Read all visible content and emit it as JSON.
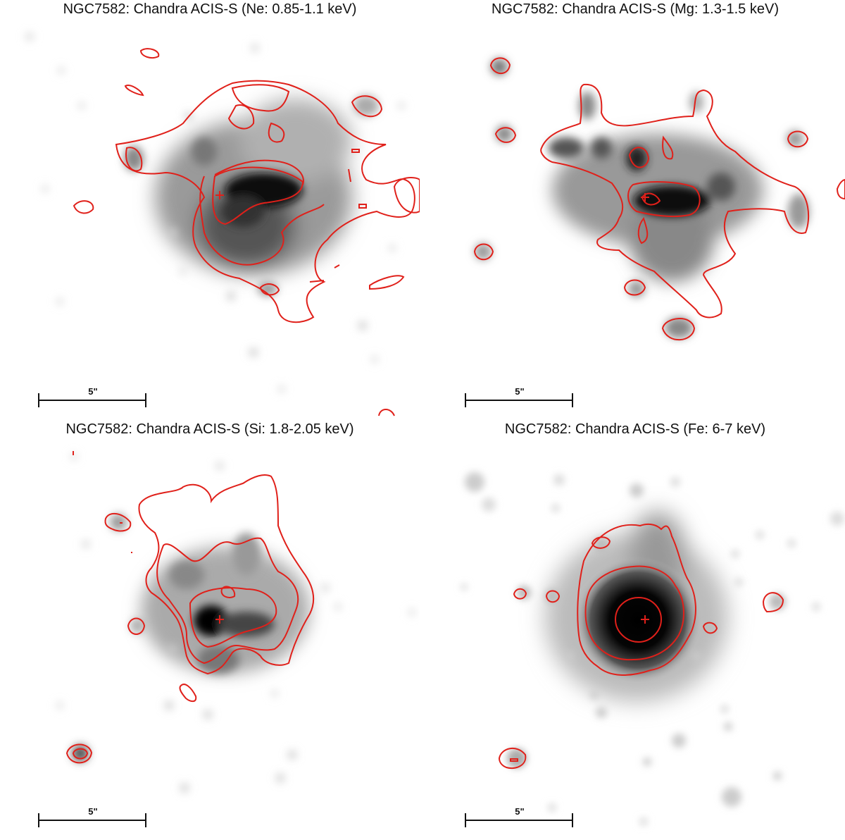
{
  "figure": {
    "contour_color": "#e0201a",
    "panels": [
      {
        "id": "ne",
        "title": "NGC7582: Chandra ACIS-S (Ne: 0.85-1.1 keV)",
        "scale_label": "5\""
      },
      {
        "id": "mg",
        "title": "NGC7582: Chandra ACIS-S (Mg: 1.3-1.5 keV)",
        "scale_label": "5\""
      },
      {
        "id": "si",
        "title": "NGC7582: Chandra ACIS-S (Si: 1.8-2.05 keV)",
        "scale_label": "5\""
      },
      {
        "id": "fe",
        "title": "NGC7582: Chandra ACIS-S (Fe: 6-7 keV)",
        "scale_label": "5\""
      }
    ]
  }
}
